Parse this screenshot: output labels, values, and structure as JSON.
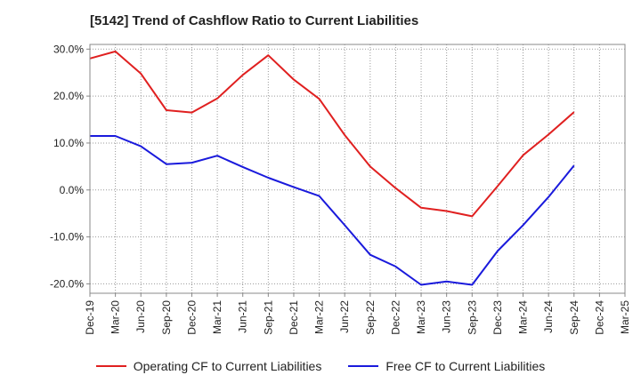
{
  "chart_data": {
    "type": "line",
    "title": "[5142]  Trend of Cashflow Ratio to Current Liabilities",
    "x": [
      "Dec-19",
      "Mar-20",
      "Jun-20",
      "Sep-20",
      "Dec-20",
      "Mar-21",
      "Jun-21",
      "Sep-21",
      "Dec-21",
      "Mar-22",
      "Jun-22",
      "Sep-22",
      "Dec-22",
      "Mar-23",
      "Jun-23",
      "Sep-23",
      "Dec-23",
      "Mar-24",
      "Jun-24",
      "Sep-24",
      "Dec-24",
      "Mar-25"
    ],
    "y_ticks": [
      "30.0%",
      "20.0%",
      "10.0%",
      "0.0%",
      "-10.0%",
      "-20.0%"
    ],
    "y_tick_values": [
      30,
      20,
      10,
      0,
      -10,
      -20
    ],
    "ylim": [
      -22,
      31
    ],
    "grid": true,
    "legend_position": "bottom",
    "series": [
      {
        "name": "Operating CF to Current Liabilities",
        "color": "#e02020",
        "values": [
          28.0,
          29.5,
          24.8,
          17.0,
          16.5,
          19.5,
          24.5,
          28.7,
          23.5,
          19.4,
          11.7,
          5.0,
          0.4,
          -3.8,
          -4.5,
          -5.6,
          0.8,
          7.4,
          11.8,
          16.6,
          null,
          null
        ]
      },
      {
        "name": "Free CF to Current Liabilities",
        "color": "#1a1adc",
        "values": [
          11.5,
          11.5,
          9.3,
          5.5,
          5.8,
          7.3,
          4.9,
          2.6,
          0.6,
          -1.3,
          -7.5,
          -13.8,
          -16.3,
          -20.2,
          -19.5,
          -20.2,
          -13.0,
          -7.5,
          -1.5,
          5.2,
          null,
          null
        ]
      }
    ]
  }
}
